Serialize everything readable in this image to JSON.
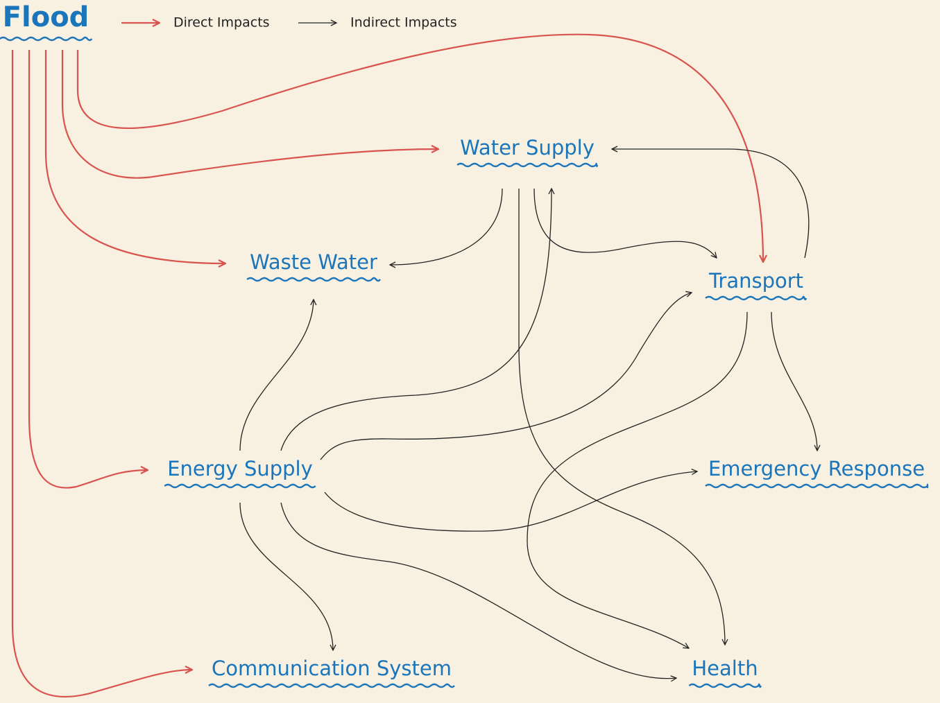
{
  "title": "Flood",
  "legend": {
    "direct": "Direct Impacts",
    "indirect": "Indirect Impacts"
  },
  "nodes": [
    {
      "label": "Water Supply"
    },
    {
      "label": "Waste Water"
    },
    {
      "label": "Transport"
    },
    {
      "label": "Energy Supply"
    },
    {
      "label": "Emergency Response"
    },
    {
      "label": "Communication System"
    },
    {
      "label": "Health"
    }
  ]
}
